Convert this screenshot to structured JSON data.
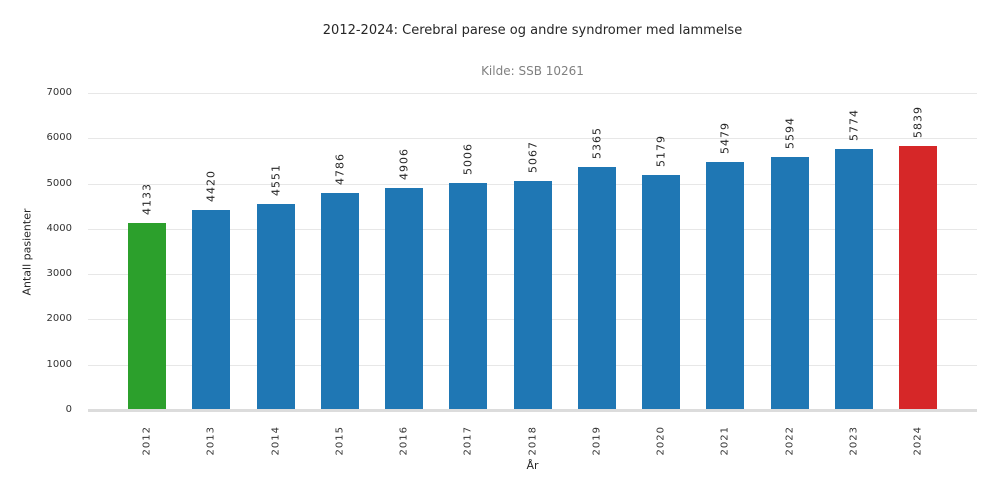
{
  "chart_data": {
    "type": "bar",
    "title": "2012-2024: Cerebral parese og andre syndromer med lammelse",
    "subtitle": "Kilde: SSB 10261",
    "xlabel": "År",
    "ylabel": "Antall pasienter",
    "categories": [
      "2012",
      "2013",
      "2014",
      "2015",
      "2016",
      "2017",
      "2018",
      "2019",
      "2020",
      "2021",
      "2022",
      "2023",
      "2024"
    ],
    "values": [
      4133,
      4420,
      4551,
      4786,
      4906,
      5006,
      5067,
      5365,
      5179,
      5479,
      5594,
      5774,
      5839
    ],
    "bar_colors": [
      "#2ca02c",
      "#1f77b4",
      "#1f77b4",
      "#1f77b4",
      "#1f77b4",
      "#1f77b4",
      "#1f77b4",
      "#1f77b4",
      "#1f77b4",
      "#1f77b4",
      "#1f77b4",
      "#1f77b4",
      "#d62728"
    ],
    "value_labels_shown": true,
    "ylim": [
      0,
      7000
    ],
    "yticks": [
      0,
      1000,
      2000,
      3000,
      4000,
      5000,
      6000,
      7000
    ],
    "grid": true,
    "legend": "none",
    "colors": {
      "first_bar": "#2ca02c",
      "default_bar": "#1f77b4",
      "last_bar": "#d62728",
      "gridline": "#e7e7e7",
      "axis_line": "#dcdcdc",
      "subtitle_text": "#808080",
      "text": "#262626"
    }
  }
}
